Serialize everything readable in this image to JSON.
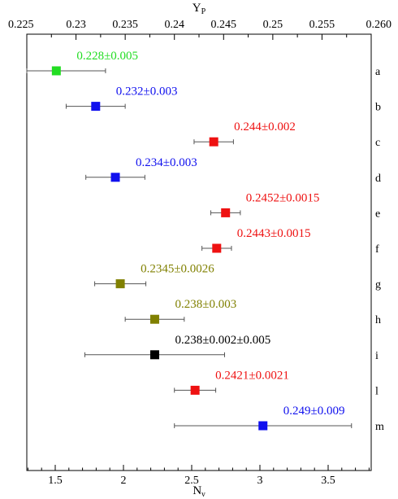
{
  "chart_data": {
    "type": "scatter",
    "x_top": {
      "label_main": "Y",
      "label_sub": "P",
      "lim": [
        0.225,
        0.26
      ],
      "tick_values": [
        0.225,
        0.23,
        0.235,
        0.24,
        0.245,
        0.25,
        0.255,
        0.26
      ],
      "tick_labels": [
        "0.225",
        "0.23",
        "0.235",
        "0.24",
        "0.245",
        "0.25",
        "0.255",
        "0.260"
      ]
    },
    "x_bottom": {
      "label_main": "N",
      "label_sub": "ν",
      "tick_values": [
        1.5,
        2,
        2.5,
        3,
        3.5
      ],
      "tick_labels": [
        "1.5",
        "2",
        "2.5",
        "3",
        "3.5"
      ]
    },
    "grid": false,
    "points": [
      {
        "row": "a",
        "y_p": 0.228,
        "err": 0.005,
        "label": "0.228±0.005",
        "color": "#22dd22"
      },
      {
        "row": "b",
        "y_p": 0.232,
        "err": 0.003,
        "label": "0.232±0.003",
        "color": "#1010ee"
      },
      {
        "row": "c",
        "y_p": 0.244,
        "err": 0.002,
        "label": "0.244±0.002",
        "color": "#ee1111"
      },
      {
        "row": "d",
        "y_p": 0.234,
        "err": 0.003,
        "label": "0.234±0.003",
        "color": "#1010ee"
      },
      {
        "row": "e",
        "y_p": 0.2452,
        "err": 0.0015,
        "label": "0.2452±0.0015",
        "color": "#ee1111"
      },
      {
        "row": "f",
        "y_p": 0.2443,
        "err": 0.0015,
        "label": "0.2443±0.0015",
        "color": "#ee1111"
      },
      {
        "row": "g",
        "y_p": 0.2345,
        "err": 0.0026,
        "label": "0.2345±0.0026",
        "color": "#808000"
      },
      {
        "row": "h",
        "y_p": 0.238,
        "err": 0.003,
        "label": "0.238±0.003",
        "color": "#808000"
      },
      {
        "row": "i",
        "y_p": 0.238,
        "err": 0.0071,
        "label": "0.238±0.002±0.005",
        "color": "#000000"
      },
      {
        "row": "l",
        "y_p": 0.2421,
        "err": 0.0021,
        "label": "0.2421±0.0021",
        "color": "#ee1111"
      },
      {
        "row": "m",
        "y_p": 0.249,
        "err": 0.009,
        "label": "0.249±0.009",
        "color": "#1010ee"
      }
    ]
  }
}
